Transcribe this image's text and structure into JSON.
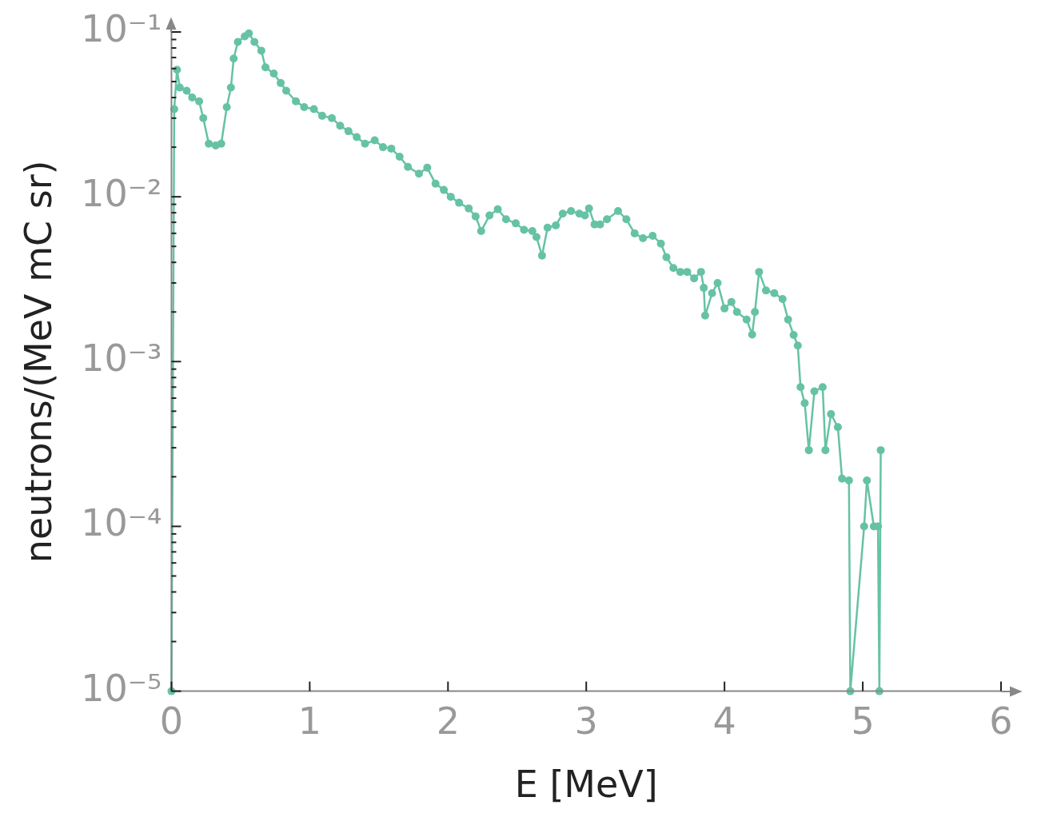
{
  "chart_data": {
    "type": "line",
    "xlabel": "E [MeV]",
    "ylabel": "neutrons/(MeV mC sr)",
    "log": "y",
    "grid": false,
    "legend": false,
    "marker": "circle",
    "line_style": "solid",
    "xlim": [
      0,
      6
    ],
    "xticks": [
      0,
      1,
      2,
      3,
      4,
      5,
      6
    ],
    "ylim": [
      1e-05,
      0.1
    ],
    "yticks": [
      {
        "value": 1e-05,
        "label": "10⁻⁵"
      },
      {
        "value": 2e-05,
        "label": null
      },
      {
        "value": 3e-05,
        "label": null
      },
      {
        "value": 4e-05,
        "label": null
      },
      {
        "value": 5e-05,
        "label": null
      },
      {
        "value": 6e-05,
        "label": null
      },
      {
        "value": 7e-05,
        "label": null
      },
      {
        "value": 8e-05,
        "label": null
      },
      {
        "value": 9e-05,
        "label": null
      },
      {
        "value": 0.0001,
        "label": "10⁻⁴"
      },
      {
        "value": 0.0002,
        "label": null
      },
      {
        "value": 0.0003,
        "label": null
      },
      {
        "value": 0.0004,
        "label": null
      },
      {
        "value": 0.0005,
        "label": null
      },
      {
        "value": 0.0006,
        "label": null
      },
      {
        "value": 0.0007,
        "label": null
      },
      {
        "value": 0.0008,
        "label": null
      },
      {
        "value": 0.0009,
        "label": null
      },
      {
        "value": 0.001,
        "label": "10⁻³"
      },
      {
        "value": 0.002,
        "label": null
      },
      {
        "value": 0.003,
        "label": null
      },
      {
        "value": 0.004,
        "label": null
      },
      {
        "value": 0.005,
        "label": null
      },
      {
        "value": 0.006,
        "label": null
      },
      {
        "value": 0.007,
        "label": null
      },
      {
        "value": 0.008,
        "label": null
      },
      {
        "value": 0.009,
        "label": null
      },
      {
        "value": 0.01,
        "label": "10⁻²"
      },
      {
        "value": 0.02,
        "label": null
      },
      {
        "value": 0.03,
        "label": null
      },
      {
        "value": 0.04,
        "label": null
      },
      {
        "value": 0.05,
        "label": null
      },
      {
        "value": 0.06,
        "label": null
      },
      {
        "value": 0.07,
        "label": null
      },
      {
        "value": 0.08,
        "label": null
      },
      {
        "value": 0.09,
        "label": null
      },
      {
        "value": 0.1,
        "label": "10⁻¹"
      }
    ],
    "series": [
      {
        "color": "#66c2a5",
        "x": [
          0,
          0.02,
          0.04,
          0.06,
          0.11,
          0.15,
          0.2,
          0.23,
          0.27,
          0.32,
          0.36,
          0.4,
          0.43,
          0.45,
          0.48,
          0.53,
          0.56,
          0.6,
          0.65,
          0.68,
          0.74,
          0.79,
          0.83,
          0.9,
          0.96,
          1.03,
          1.09,
          1.16,
          1.22,
          1.28,
          1.34,
          1.4,
          1.47,
          1.53,
          1.59,
          1.65,
          1.71,
          1.79,
          1.85,
          1.91,
          1.97,
          2.02,
          2.08,
          2.15,
          2.2,
          2.24,
          2.3,
          2.36,
          2.42,
          2.49,
          2.55,
          2.61,
          2.64,
          2.68,
          2.72,
          2.78,
          2.83,
          2.89,
          2.95,
          2.99,
          3.02,
          3.06,
          3.1,
          3.15,
          3.23,
          3.29,
          3.35,
          3.41,
          3.48,
          3.54,
          3.58,
          3.63,
          3.68,
          3.73,
          3.78,
          3.83,
          3.85,
          3.86,
          3.91,
          3.95,
          4.0,
          4.05,
          4.09,
          4.16,
          4.2,
          4.22,
          4.25,
          4.3,
          4.36,
          4.42,
          4.46,
          4.5,
          4.53,
          4.55,
          4.58,
          4.61,
          4.65,
          4.71,
          4.73,
          4.77,
          4.82,
          4.85,
          4.9,
          4.91,
          5.01,
          5.03,
          5.08,
          5.11,
          5.12,
          5.13
        ],
        "values": [
          1e-05,
          0.034,
          0.059,
          0.046,
          0.044,
          0.04,
          0.038,
          0.03,
          0.021,
          0.0205,
          0.021,
          0.035,
          0.046,
          0.069,
          0.087,
          0.094,
          0.098,
          0.087,
          0.077,
          0.061,
          0.056,
          0.049,
          0.044,
          0.038,
          0.035,
          0.034,
          0.031,
          0.03,
          0.027,
          0.025,
          0.023,
          0.021,
          0.022,
          0.02,
          0.0196,
          0.0175,
          0.0152,
          0.0138,
          0.015,
          0.012,
          0.011,
          0.01,
          0.0092,
          0.0085,
          0.0076,
          0.0062,
          0.0077,
          0.0084,
          0.0073,
          0.0069,
          0.0063,
          0.0062,
          0.0057,
          0.0044,
          0.0065,
          0.0067,
          0.0079,
          0.0082,
          0.0079,
          0.0077,
          0.0085,
          0.0068,
          0.0068,
          0.0073,
          0.0082,
          0.0073,
          0.006,
          0.0056,
          0.0058,
          0.0052,
          0.0043,
          0.0037,
          0.0035,
          0.0035,
          0.0032,
          0.0035,
          0.0028,
          0.0019,
          0.0026,
          0.003,
          0.0021,
          0.0023,
          0.002,
          0.0018,
          0.00146,
          0.002,
          0.0035,
          0.0027,
          0.0026,
          0.0024,
          0.0018,
          0.00145,
          0.00125,
          0.0007,
          0.00056,
          0.00029,
          0.00066,
          0.0007,
          0.00029,
          0.00048,
          0.0004,
          0.000195,
          0.00019,
          1e-05,
          0.0001,
          0.00019,
          0.0001,
          0.0001,
          1e-05,
          0.00029
        ]
      }
    ]
  }
}
